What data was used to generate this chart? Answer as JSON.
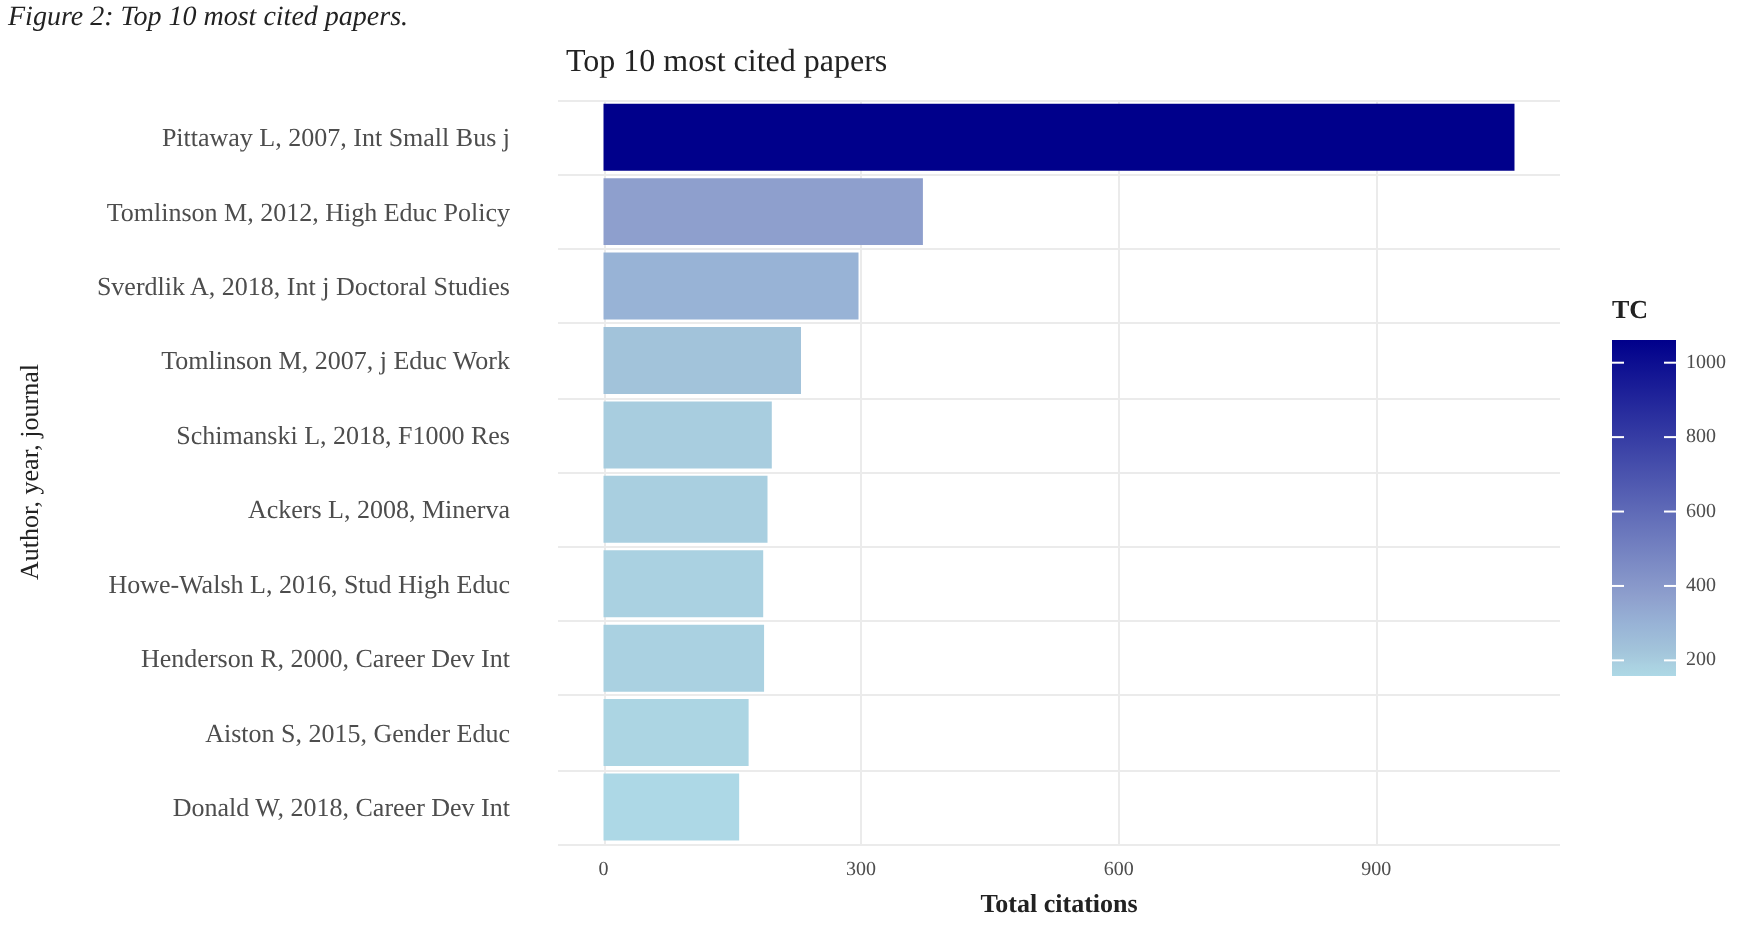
{
  "chart_data": {
    "type": "bar",
    "orientation": "horizontal",
    "title": "Top 10 most cited papers",
    "xlabel": "Total citations",
    "ylabel": "Author, year, journal",
    "clabel": "TC",
    "annotations": [
      "Figure 2: Top 10 most cited papers."
    ],
    "categories": [
      "Pittaway L, 2007, Int Small Bus j",
      "Tomlinson M, 2012, High Educ Policy",
      "Sverdlik A, 2018, Int j Doctoral Studies",
      "Tomlinson M, 2007, j Educ Work",
      "Schimanski L, 2018, F1000 Res",
      "Ackers L, 2008, Minerva",
      "Howe-Walsh L, 2016, Stud High Educ",
      "Henderson R, 2000, Career Dev Int",
      "Aiston S, 2015, Gender Educ",
      "Donald W, 2018, Career Dev Int"
    ],
    "values": [
      1061,
      372,
      297,
      230,
      196,
      191,
      186,
      187,
      169,
      158
    ],
    "colors": [
      "#00008b",
      "#8e9fcd",
      "#98b3d6",
      "#a2c3da",
      "#a8cddf",
      "#a9cfe0",
      "#aad1e1",
      "#aad1e1",
      "#acd5e3",
      "#add8e6"
    ],
    "xlim": [
      -53,
      1114
    ],
    "xticks": [
      0,
      300,
      600,
      900
    ],
    "clim": [
      158,
      1061
    ],
    "cticks": [
      200,
      400,
      600,
      800,
      1000
    ],
    "grid": true
  }
}
